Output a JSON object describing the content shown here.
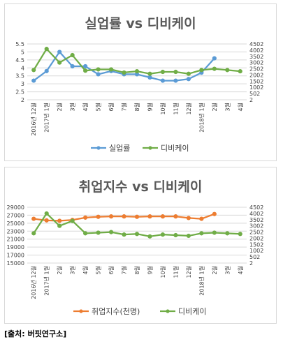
{
  "x_labels": [
    "2016년 12월",
    "2017년 1월",
    "2월",
    "3월",
    "4월",
    "5월",
    "6월",
    "7월",
    "8월",
    "9월",
    "10월",
    "11월",
    "12월",
    "2018년 1월",
    "2월",
    "3월",
    "4월"
  ],
  "source": "[출처: 버핏연구소]",
  "colors": {
    "blue": "#5b9bd5",
    "orange": "#ed7d31",
    "green": "#70ad47",
    "grid": "#d9d9d9",
    "axis_text": "#404040",
    "title": "#595959"
  },
  "chart_data": [
    {
      "type": "line",
      "title": "실업률 vs 디비케이",
      "y_left_ticks": [
        "2",
        "2.5",
        "3",
        "3.5",
        "4",
        "4.5",
        "5",
        "5.5"
      ],
      "y_left_range": [
        2,
        5.5
      ],
      "y_right_ticks": [
        "2",
        "502",
        "1002",
        "1502",
        "2002",
        "2502",
        "3002",
        "3502",
        "4002",
        "4502"
      ],
      "y_right_range": [
        2,
        4502
      ],
      "grid": true,
      "legend_position": "bottom",
      "series": [
        {
          "name": "실업률",
          "axis": "left",
          "color": "#5b9bd5",
          "values": [
            3.2,
            3.8,
            5.0,
            4.1,
            4.1,
            3.6,
            3.8,
            3.6,
            3.6,
            3.4,
            3.2,
            3.2,
            3.3,
            3.7,
            4.6,
            null,
            null
          ]
        },
        {
          "name": "디비케이",
          "axis": "right",
          "color": "#70ad47",
          "values": [
            2400,
            4100,
            3000,
            3600,
            2350,
            2450,
            2450,
            2200,
            2300,
            2100,
            2250,
            2250,
            2100,
            2400,
            2500,
            2400,
            2300
          ]
        }
      ]
    },
    {
      "type": "line",
      "title": "취업지수 vs 디비케이",
      "y_left_ticks": [
        "15000",
        "17000",
        "19000",
        "21000",
        "23000",
        "25000",
        "27000",
        "29000"
      ],
      "y_left_range": [
        15000,
        29000
      ],
      "y_right_ticks": [
        "2",
        "502",
        "1002",
        "1502",
        "2002",
        "2502",
        "3002",
        "3502",
        "4002",
        "4502"
      ],
      "y_right_range": [
        2,
        4502
      ],
      "grid": true,
      "legend_position": "bottom",
      "series": [
        {
          "name": "취업지수(천명)",
          "axis": "left",
          "color": "#ed7d31",
          "values": [
            26100,
            25700,
            25600,
            25800,
            26400,
            26600,
            26700,
            26700,
            26600,
            26700,
            26700,
            26700,
            26300,
            26100,
            27300,
            null,
            null
          ]
        },
        {
          "name": "디비케이",
          "axis": "right",
          "color": "#70ad47",
          "values": [
            2400,
            4000,
            3000,
            3400,
            2400,
            2450,
            2500,
            2300,
            2350,
            2150,
            2300,
            2250,
            2200,
            2400,
            2450,
            2400,
            2350
          ]
        }
      ]
    }
  ]
}
